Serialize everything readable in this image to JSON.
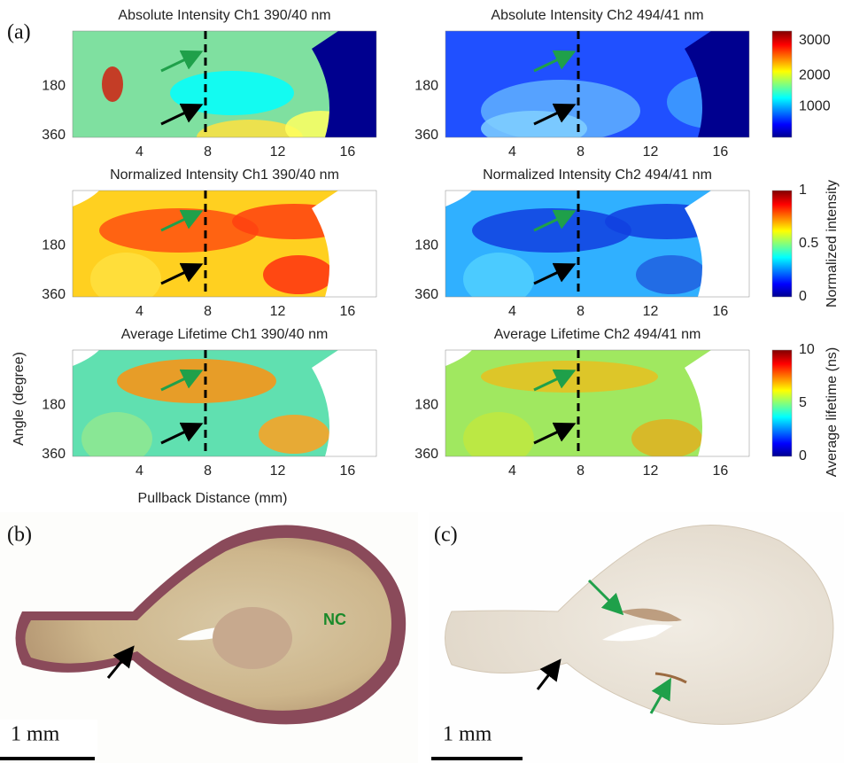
{
  "panel_labels": [
    "(a)",
    "(b)",
    "(c)"
  ],
  "heatmaps": [
    {
      "title": "Absolute Intensity Ch1 390/40 nm"
    },
    {
      "title": "Absolute Intensity Ch2 494/41 nm"
    },
    {
      "title": "Normalized Intensity Ch1 390/40 nm"
    },
    {
      "title": "Normalized Intensity Ch2 494/41 nm"
    },
    {
      "title": "Average Lifetime Ch1 390/40 nm"
    },
    {
      "title": "Average Lifetime Ch2 494/41 nm"
    }
  ],
  "x_axis": {
    "label": "Pullback Distance (mm)",
    "ticks": [
      "4",
      "8",
      "12",
      "16"
    ]
  },
  "y_axis": {
    "label": "Angle (degree)",
    "ticks": [
      "180",
      "360"
    ]
  },
  "colorbars": [
    {
      "ticks": [
        "3000",
        "2000",
        "1000"
      ]
    },
    {
      "label": "Normalized intensity",
      "ticks": [
        "1",
        "0.5",
        "0"
      ]
    },
    {
      "label": "Average lifetime (ns)",
      "ticks": [
        "10",
        "5",
        "0"
      ]
    }
  ],
  "histology": [
    {
      "annotation": "NC",
      "scale_bar": "1 mm"
    },
    {
      "scale_bar": "1 mm"
    }
  ]
}
